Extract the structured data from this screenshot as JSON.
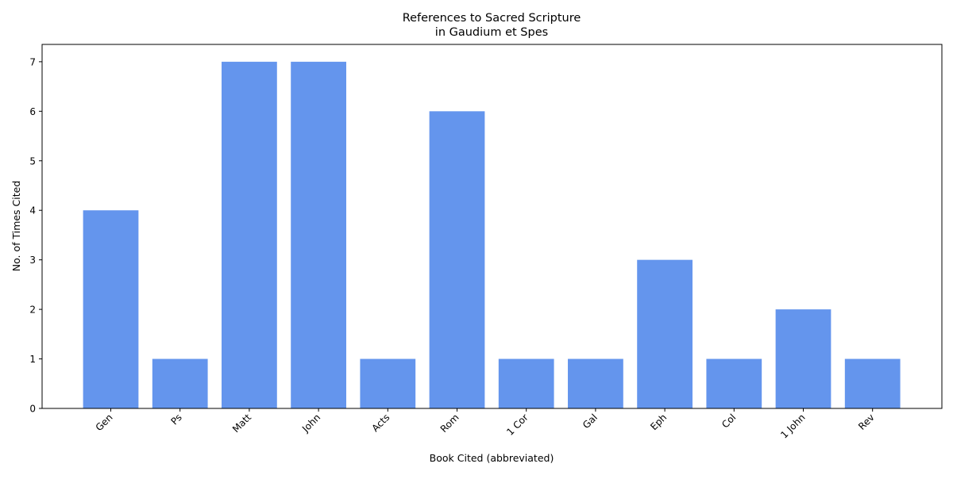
{
  "chart_data": {
    "type": "bar",
    "title": "References to Sacred Scripture\nin Gaudium et Spes",
    "title_lines": [
      "References to Sacred Scripture",
      "in Gaudium et Spes"
    ],
    "xlabel": "Book Cited (abbreviated)",
    "ylabel": "No. of Times Cited",
    "categories": [
      "Gen",
      "Ps",
      "Matt",
      "John",
      "Acts",
      "Rom",
      "1 Cor",
      "Gal",
      "Eph",
      "Col",
      "1 John",
      "Rev"
    ],
    "values": [
      4,
      1,
      7,
      7,
      1,
      6,
      1,
      1,
      3,
      1,
      2,
      1
    ],
    "ylim": [
      0,
      7.35
    ],
    "yticks": [
      0,
      1,
      2,
      3,
      4,
      5,
      6,
      7
    ],
    "grid": false,
    "legend": "none",
    "bar_color": "#6495ED",
    "x_tick_rotation": "45 degrees"
  }
}
